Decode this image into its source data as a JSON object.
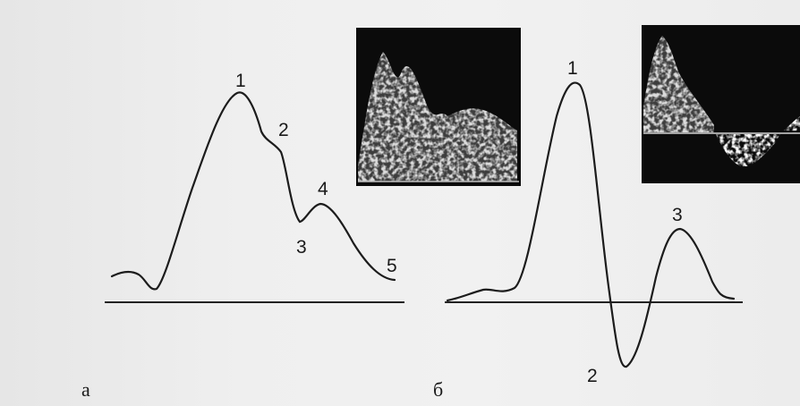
{
  "panels": [
    {
      "caption": "а",
      "point_labels": [
        "1",
        "2",
        "3",
        "4",
        "5"
      ]
    },
    {
      "caption": "б",
      "point_labels": [
        "1",
        "2",
        "3"
      ]
    }
  ],
  "colors": {
    "curve": "#1c1c1c",
    "baseline": "#222222",
    "doppler_background": "#0b0b0b",
    "doppler_signal": "#e8e8e8"
  }
}
